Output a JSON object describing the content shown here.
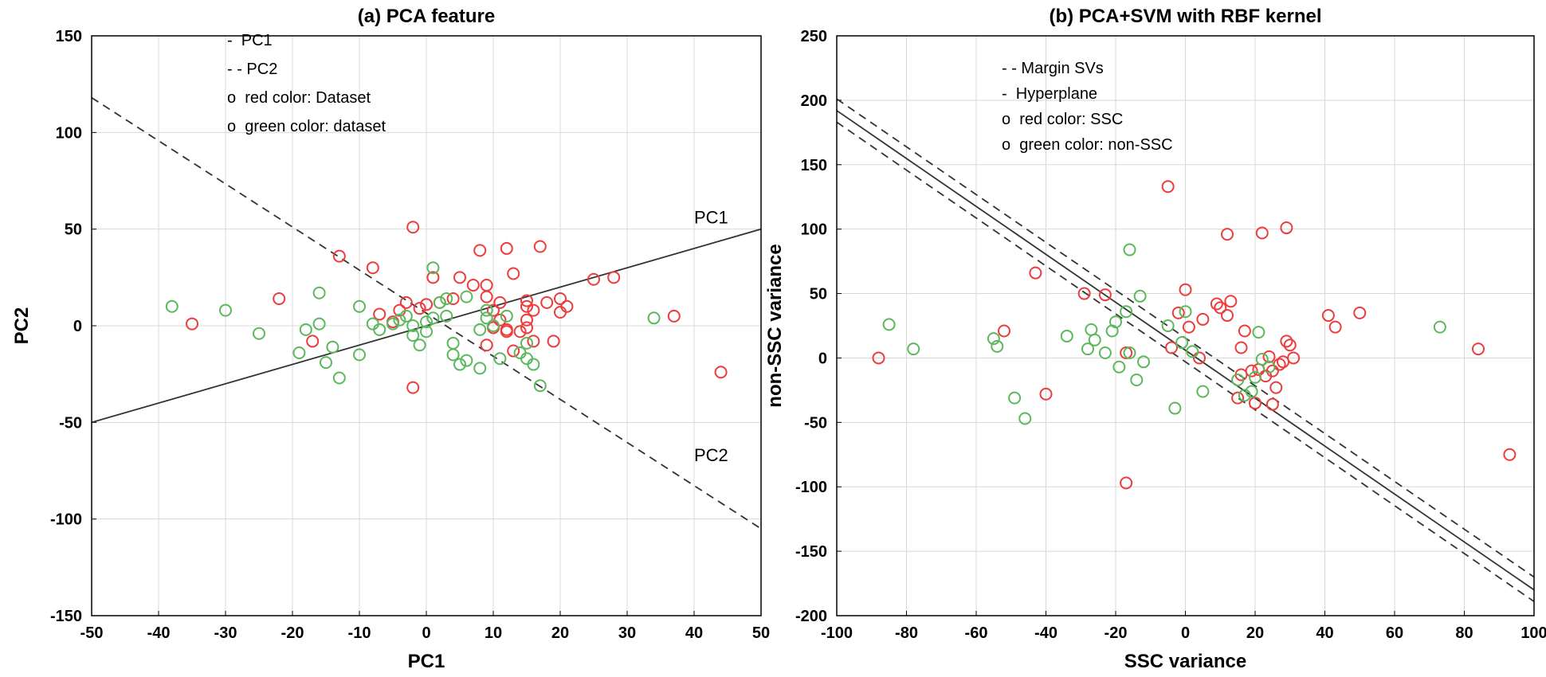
{
  "chart_data": [
    {
      "type": "scatter",
      "title": "(a) PCA feature",
      "xlabel": "PC1",
      "ylabel": "PC2",
      "xlim": [
        -50,
        50
      ],
      "ylim": [
        -150,
        150
      ],
      "xticks": [
        -50,
        -40,
        -30,
        -20,
        -10,
        0,
        10,
        20,
        30,
        40,
        50
      ],
      "yticks": [
        -150,
        -100,
        -50,
        0,
        50,
        100,
        150
      ],
      "grid": true,
      "legend": {
        "placement": "top-left",
        "entries": [
          "-  PC1",
          "- - PC2",
          "o  red color: Dataset",
          "o  green color: dataset"
        ]
      },
      "lines": [
        {
          "name": "PC1",
          "style": "solid",
          "x": [
            -50,
            50
          ],
          "y": [
            -50,
            50
          ]
        },
        {
          "name": "PC2",
          "style": "dashed",
          "x": [
            -50,
            50
          ],
          "y": [
            118,
            -105
          ]
        }
      ],
      "annotations": [
        {
          "text": "PC1",
          "x": 40,
          "y": 53
        },
        {
          "text": "PC2",
          "x": 40,
          "y": -70
        }
      ],
      "series": [
        {
          "name": "red color: Dataset",
          "color": "#ee3b3b",
          "points": [
            [
              -35,
              1
            ],
            [
              -22,
              14
            ],
            [
              -17,
              -8
            ],
            [
              -13,
              36
            ],
            [
              -8,
              30
            ],
            [
              -7,
              6
            ],
            [
              -5,
              2
            ],
            [
              -4,
              8
            ],
            [
              -3,
              12
            ],
            [
              -2,
              -32
            ],
            [
              -2,
              51
            ],
            [
              -1,
              9
            ],
            [
              0,
              11
            ],
            [
              1,
              25
            ],
            [
              2,
              12
            ],
            [
              4,
              14
            ],
            [
              5,
              25
            ],
            [
              7,
              21
            ],
            [
              8,
              39
            ],
            [
              9,
              21
            ],
            [
              9,
              -10
            ],
            [
              9,
              15
            ],
            [
              10,
              8
            ],
            [
              10,
              -1
            ],
            [
              11,
              3
            ],
            [
              11,
              12
            ],
            [
              12,
              -3
            ],
            [
              12,
              -2
            ],
            [
              12,
              40
            ],
            [
              13,
              27
            ],
            [
              13,
              -13
            ],
            [
              14,
              -3
            ],
            [
              15,
              -1
            ],
            [
              15,
              3
            ],
            [
              15,
              10
            ],
            [
              15,
              13
            ],
            [
              16,
              8
            ],
            [
              16,
              -8
            ],
            [
              17,
              41
            ],
            [
              18,
              12
            ],
            [
              19,
              -8
            ],
            [
              20,
              7
            ],
            [
              20,
              14
            ],
            [
              21,
              10
            ],
            [
              25,
              24
            ],
            [
              28,
              25
            ],
            [
              37,
              5
            ],
            [
              44,
              -24
            ]
          ]
        },
        {
          "name": "green color: dataset",
          "color": "#5cb85c",
          "points": [
            [
              -38,
              10
            ],
            [
              -30,
              8
            ],
            [
              -25,
              -4
            ],
            [
              -19,
              -14
            ],
            [
              -18,
              -2
            ],
            [
              -16,
              1
            ],
            [
              -16,
              17
            ],
            [
              -15,
              -19
            ],
            [
              -14,
              -11
            ],
            [
              -13,
              -27
            ],
            [
              -10,
              10
            ],
            [
              -10,
              -15
            ],
            [
              -8,
              1
            ],
            [
              -7,
              -2
            ],
            [
              -5,
              1
            ],
            [
              -4,
              3
            ],
            [
              -3,
              5
            ],
            [
              -2,
              0
            ],
            [
              -2,
              -5
            ],
            [
              -1,
              -10
            ],
            [
              0,
              2
            ],
            [
              0,
              -3
            ],
            [
              1,
              4
            ],
            [
              1,
              30
            ],
            [
              2,
              12
            ],
            [
              3,
              5
            ],
            [
              3,
              14
            ],
            [
              4,
              -15
            ],
            [
              4,
              -9
            ],
            [
              5,
              -20
            ],
            [
              6,
              -18
            ],
            [
              6,
              15
            ],
            [
              8,
              -22
            ],
            [
              8,
              -2
            ],
            [
              9,
              4
            ],
            [
              9,
              8
            ],
            [
              10,
              0
            ],
            [
              11,
              -17
            ],
            [
              12,
              5
            ],
            [
              14,
              -14
            ],
            [
              15,
              -17
            ],
            [
              15,
              -9
            ],
            [
              16,
              -20
            ],
            [
              17,
              -31
            ],
            [
              34,
              4
            ]
          ]
        }
      ]
    },
    {
      "type": "scatter",
      "title": "(b) PCA+SVM with RBF kernel",
      "xlabel": "SSC variance",
      "ylabel": "non-SSC variance",
      "xlim": [
        -100,
        100
      ],
      "ylim": [
        -200,
        250
      ],
      "xticks": [
        -100,
        -80,
        -60,
        -40,
        -20,
        0,
        20,
        40,
        60,
        80,
        100
      ],
      "yticks": [
        -200,
        -150,
        -100,
        -50,
        0,
        50,
        100,
        150,
        200,
        250
      ],
      "grid": true,
      "legend": {
        "placement": "top-left",
        "entries": [
          "- - Margin SVs",
          "-  Hyperplane",
          "o  red color: SSC",
          "o  green color: non-SSC"
        ]
      },
      "lines": [
        {
          "name": "Hyperplane",
          "style": "solid",
          "x": [
            -100,
            100
          ],
          "y": [
            192,
            -180
          ]
        },
        {
          "name": "Margin SVs upper",
          "style": "dashed",
          "x": [
            -100,
            100
          ],
          "y": [
            201,
            -170
          ]
        },
        {
          "name": "Margin SVs lower",
          "style": "dashed",
          "x": [
            -100,
            100
          ],
          "y": [
            183,
            -189
          ]
        }
      ],
      "series": [
        {
          "name": "red color: SSC",
          "color": "#ee3b3b",
          "points": [
            [
              -88,
              0
            ],
            [
              -52,
              21
            ],
            [
              -43,
              66
            ],
            [
              -40,
              -28
            ],
            [
              -29,
              50
            ],
            [
              -23,
              49
            ],
            [
              -17,
              4
            ],
            [
              -17,
              -97
            ],
            [
              -5,
              133
            ],
            [
              -4,
              8
            ],
            [
              -2,
              35
            ],
            [
              0,
              53
            ],
            [
              1,
              24
            ],
            [
              4,
              0
            ],
            [
              5,
              30
            ],
            [
              9,
              42
            ],
            [
              10,
              39
            ],
            [
              12,
              33
            ],
            [
              12,
              96
            ],
            [
              13,
              44
            ],
            [
              15,
              -31
            ],
            [
              16,
              8
            ],
            [
              16,
              -13
            ],
            [
              17,
              21
            ],
            [
              19,
              -10
            ],
            [
              20,
              -35
            ],
            [
              21,
              -9
            ],
            [
              22,
              97
            ],
            [
              23,
              -14
            ],
            [
              24,
              1
            ],
            [
              25,
              -10
            ],
            [
              25,
              -36
            ],
            [
              26,
              -23
            ],
            [
              27,
              -5
            ],
            [
              28,
              -3
            ],
            [
              29,
              13
            ],
            [
              29,
              101
            ],
            [
              30,
              10
            ],
            [
              31,
              0
            ],
            [
              41,
              33
            ],
            [
              43,
              24
            ],
            [
              50,
              35
            ],
            [
              84,
              7
            ],
            [
              93,
              -75
            ]
          ]
        },
        {
          "name": "green color: non-SSC",
          "color": "#5cb85c",
          "points": [
            [
              -85,
              26
            ],
            [
              -78,
              7
            ],
            [
              -55,
              15
            ],
            [
              -54,
              9
            ],
            [
              -49,
              -31
            ],
            [
              -46,
              -47
            ],
            [
              -34,
              17
            ],
            [
              -28,
              7
            ],
            [
              -27,
              22
            ],
            [
              -26,
              14
            ],
            [
              -23,
              4
            ],
            [
              -21,
              21
            ],
            [
              -20,
              28
            ],
            [
              -19,
              -7
            ],
            [
              -17,
              36
            ],
            [
              -16,
              4
            ],
            [
              -16,
              84
            ],
            [
              -14,
              -17
            ],
            [
              -13,
              48
            ],
            [
              -12,
              -3
            ],
            [
              -5,
              25
            ],
            [
              -3,
              -39
            ],
            [
              0,
              36
            ],
            [
              -1,
              12
            ],
            [
              2,
              5
            ],
            [
              5,
              -26
            ],
            [
              15,
              -17
            ],
            [
              17,
              -29
            ],
            [
              19,
              -26
            ],
            [
              20,
              -15
            ],
            [
              21,
              20
            ],
            [
              22,
              -1
            ],
            [
              24,
              -7
            ],
            [
              73,
              24
            ]
          ]
        }
      ]
    }
  ]
}
